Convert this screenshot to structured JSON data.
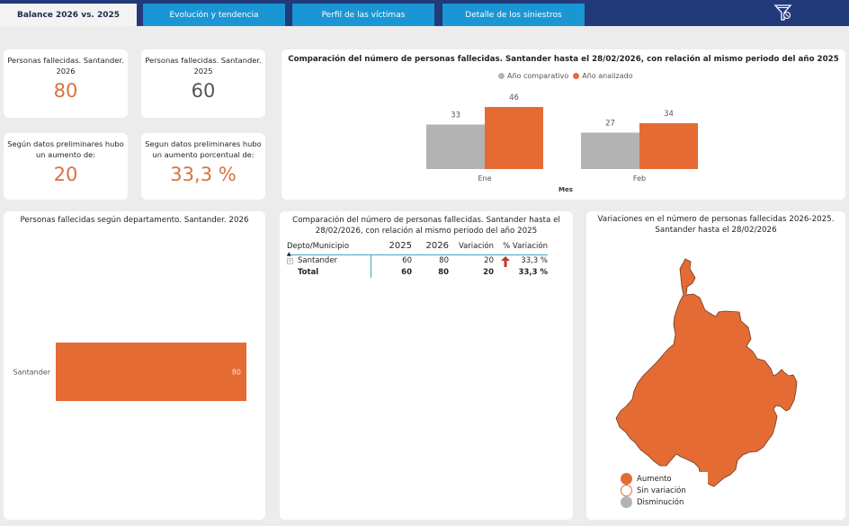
{
  "tabs": [
    {
      "label": "Balance 2026 vs. 2025",
      "active": true
    },
    {
      "label": "Evolución y tendencia",
      "active": false
    },
    {
      "label": "Perfil de las víctimas",
      "active": false
    },
    {
      "label": "Detalle de los siniestros",
      "active": false
    }
  ],
  "header": {
    "filter_icon": "clear-filter-icon"
  },
  "colors": {
    "accent_orange": "#e46c34",
    "comparative_grey": "#b3b3b3",
    "tab_blue": "#1a96d4",
    "nav_dark": "#223a7a",
    "kpi_orange": "#d6733e"
  },
  "kpis": [
    {
      "title": "Personas fallecidas. Santander. 2026",
      "value": "80"
    },
    {
      "title": "Personas fallecidas. Santander. 2025",
      "value": "60"
    },
    {
      "title": "Según datos preliminares hubo un aumento de:",
      "value": "20"
    },
    {
      "title": "Segun datos preliminares hubo un aumento porcentual de:",
      "value": "33,3 %"
    }
  ],
  "chart_data": [
    {
      "type": "bar",
      "title": "Comparación del número de personas fallecidas. Santander hasta el 28/02/2026, con relación al mismo periodo del año 2025",
      "categories": [
        "Ene",
        "Feb"
      ],
      "series": [
        {
          "name": "Año comparativo",
          "color": "#b3b3b3",
          "values": [
            33,
            27
          ]
        },
        {
          "name": "Año analizado",
          "color": "#e46c34",
          "values": [
            46,
            34
          ]
        }
      ],
      "xlabel": "Mes",
      "ylabel": "",
      "ylim": [
        0,
        46
      ],
      "grid": false,
      "legend": "top-center"
    },
    {
      "type": "bar",
      "orientation": "horizontal",
      "title": "Personas fallecidas según departamento. Santander. 2026",
      "categories": [
        "Santander"
      ],
      "values": [
        80
      ],
      "color": "#e46c34",
      "xlim": [
        0,
        80
      ]
    }
  ],
  "matrix": {
    "title": "Comparación del número de personas fallecidas. Santander hasta el 28/02/2026, con relación al mismo periodo del año 2025",
    "columns": [
      "Depto/Municipio",
      "2025",
      "2026",
      "Variación",
      "% Variación"
    ],
    "rows": [
      {
        "name": "Santander",
        "y2025": "60",
        "y2026": "80",
        "variacion": "20",
        "trend": "up-arrow",
        "pct": "33,3 %"
      }
    ],
    "total": {
      "name": "Total",
      "y2025": "60",
      "y2026": "80",
      "variacion": "20",
      "pct": "33,3 %"
    }
  },
  "map": {
    "title_line1": "Variaciones en el número de personas fallecidas 2026-2025.",
    "title_line2": "Santander hasta el 28/02/2026",
    "region": "Santander",
    "region_status": "Aumento",
    "legend": [
      {
        "label": "Aumento",
        "color": "#e46c34"
      },
      {
        "label": "Sin variación",
        "color": "#ffffff"
      },
      {
        "label": "Disminución",
        "color": "#b3b3b3"
      }
    ]
  }
}
